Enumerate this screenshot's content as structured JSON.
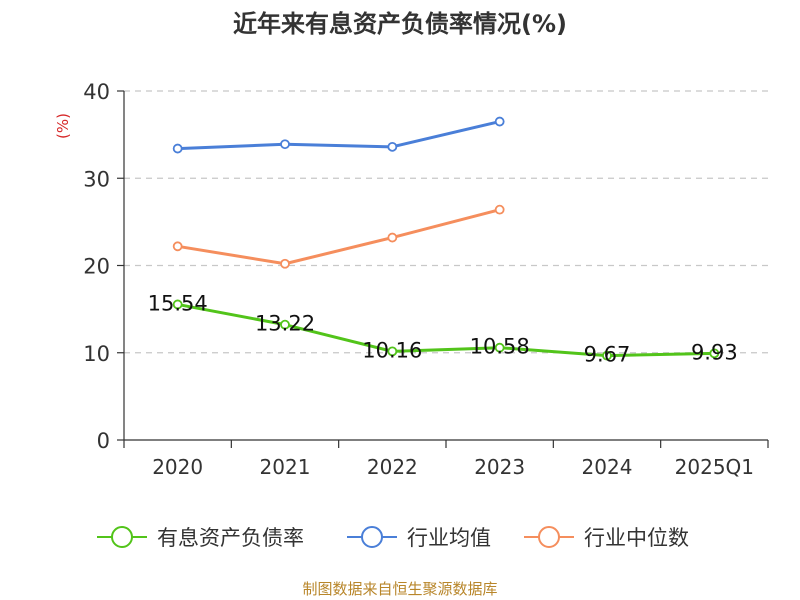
{
  "chart_data": {
    "type": "line",
    "title": "近年来有息资产负债率情况(%)",
    "ylabel": "(%)",
    "xlabel": "",
    "categories": [
      "2020",
      "2021",
      "2022",
      "2023",
      "2024",
      "2025Q1"
    ],
    "ylim": [
      0,
      40
    ],
    "yticks": [
      0,
      10,
      20,
      30,
      40
    ],
    "grid": true,
    "legend_position": "bottom",
    "series": [
      {
        "name": "有息资产负债率",
        "color": "#52c41a",
        "values": [
          15.54,
          13.22,
          10.16,
          10.58,
          9.67,
          9.93
        ],
        "labels": [
          "15.54",
          "13.22",
          "10.16",
          "10.58",
          "9.67",
          "9.93"
        ]
      },
      {
        "name": "行业均值",
        "color": "#4a7fd8",
        "values": [
          33.4,
          33.9,
          33.6,
          36.5,
          null,
          null
        ]
      },
      {
        "name": "行业中位数",
        "color": "#f58e5d",
        "values": [
          22.2,
          20.2,
          23.2,
          26.4,
          null,
          null
        ]
      }
    ]
  },
  "source": "制图数据来自恒生聚源数据库",
  "colors": {
    "axis": "#333333",
    "grid": "#c8c8c8",
    "ylabel": "#d62728",
    "source": "#b8862a"
  }
}
